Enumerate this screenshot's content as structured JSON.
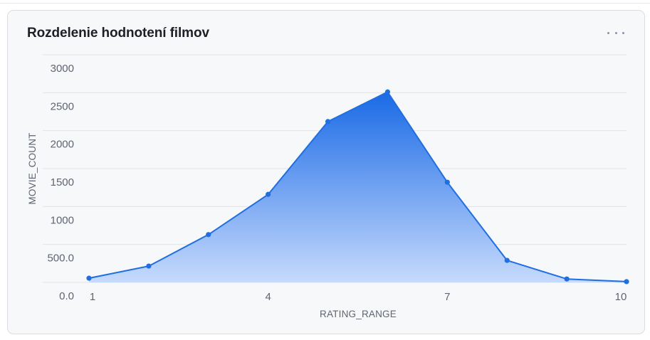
{
  "card": {
    "title": "Rozdelenie hodnotení filmov",
    "menu_icon": "more-horizontal-icon"
  },
  "colors": {
    "line": "#1f6fe0",
    "fill_top": "#1a6ae6",
    "fill_bottom": "#c6dafc",
    "grid": "#e3e4e8"
  },
  "chart_data": {
    "type": "area",
    "title": "Rozdelenie hodnotení filmov",
    "xlabel": "RATING_RANGE",
    "ylabel": "MOVIE_COUNT",
    "x": [
      1,
      2,
      3,
      4,
      5,
      6,
      7,
      8,
      9,
      10
    ],
    "series": [
      {
        "values": [
          55,
          215,
          630,
          1160,
          2120,
          2510,
          1320,
          290,
          45,
          10
        ]
      }
    ],
    "xticks": [
      "1",
      "4",
      "7",
      "10"
    ],
    "xtick_values": [
      1,
      4,
      7,
      10
    ],
    "yticks": [
      "0.0",
      "500.0",
      "1000",
      "1500",
      "2000",
      "2500",
      "3000"
    ],
    "ytick_values": [
      0,
      500,
      1000,
      1500,
      2000,
      2500,
      3000
    ],
    "xlim": [
      1,
      10
    ],
    "ylim": [
      0,
      3000
    ],
    "grid": true,
    "legend": "none"
  }
}
